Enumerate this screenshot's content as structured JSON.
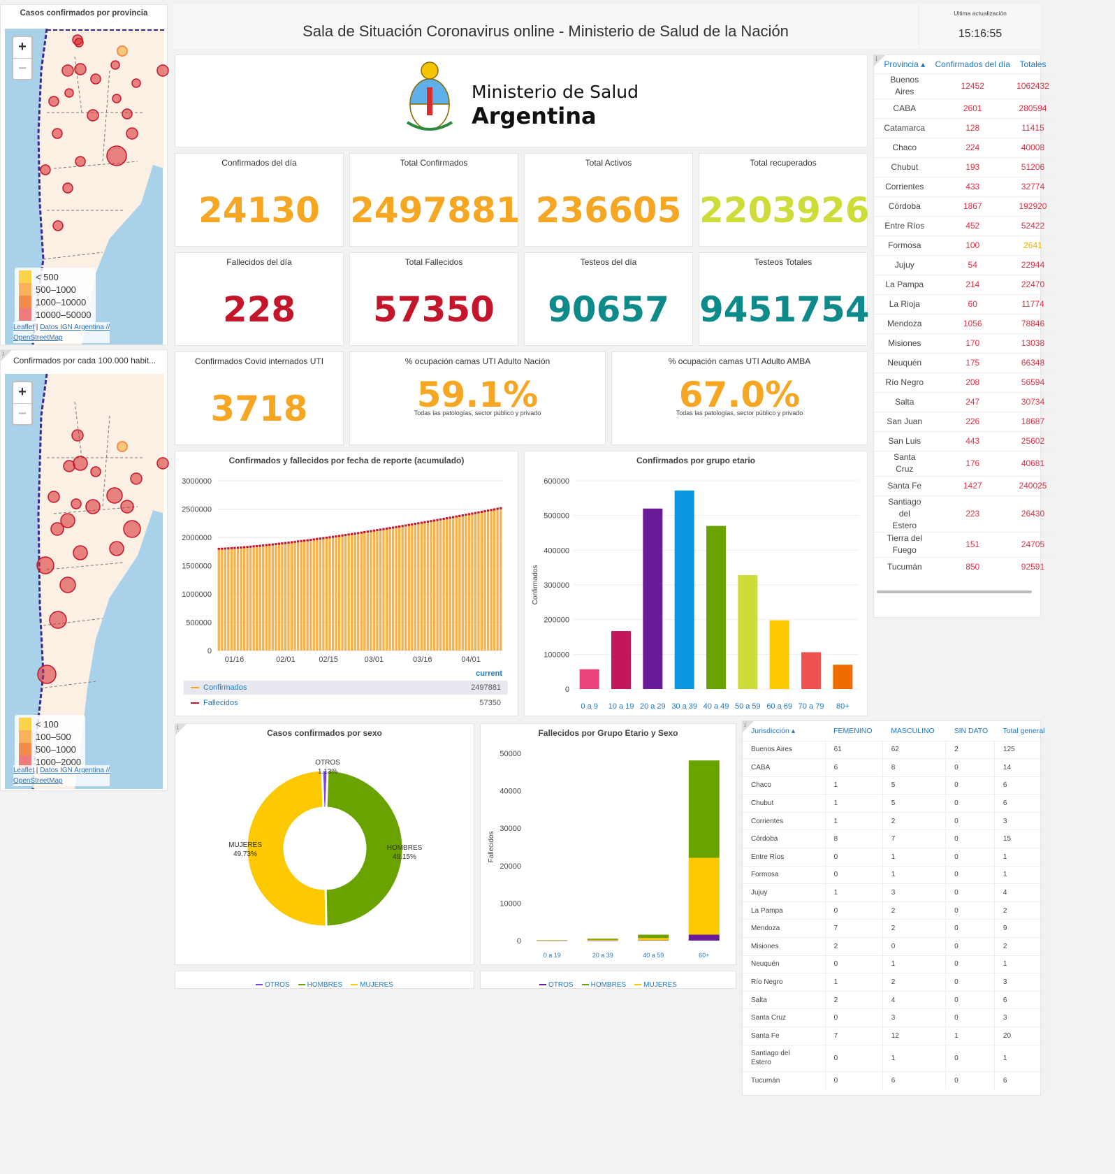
{
  "header": {
    "title": "Sala de Situación Coronavirus online - Ministerio de Salud de la Nación",
    "update_label": "Ultima actualización",
    "update_time": "15:16:55"
  },
  "logo": {
    "line1": "Ministerio de Salud",
    "line2": "Argentina"
  },
  "map1": {
    "title": "Casos confirmados por provincia",
    "zoom_in": "+",
    "zoom_out": "−",
    "legend": [
      {
        "label": "< 500",
        "color": "#fbd34a"
      },
      {
        "label": "500–1000",
        "color": "#f9b25a"
      },
      {
        "label": "1000–10000",
        "color": "#f38c4b"
      },
      {
        "label": "10000–50000",
        "color": "#ef7a7a"
      }
    ],
    "attr_leaflet": "Leaflet",
    "attr_sep": " | ",
    "attr_ign": "Datos IGN Argentina //",
    "attr_osm": "OpenStreetMap"
  },
  "map2": {
    "title": "Confirmados por cada 100.000 habit...",
    "zoom_in": "+",
    "zoom_out": "−",
    "legend": [
      {
        "label": "< 100",
        "color": "#fbd34a"
      },
      {
        "label": "100–500",
        "color": "#f9b25a"
      },
      {
        "label": "500–1000",
        "color": "#f38c4b"
      },
      {
        "label": "1000–2000",
        "color": "#ef7a7a"
      }
    ],
    "attr_leaflet": "Leaflet",
    "attr_sep": " | ",
    "attr_ign": "Datos IGN Argentina //",
    "attr_osm": "OpenStreetMap"
  },
  "stats": {
    "confirmados_dia": {
      "label": "Confirmados del día",
      "value": "24130",
      "color": "#f5a623"
    },
    "total_confirmados": {
      "label": "Total Confirmados",
      "value": "2497881",
      "color": "#f5a623"
    },
    "total_activos": {
      "label": "Total Activos",
      "value": "236605",
      "color": "#f5a623"
    },
    "total_recuperados": {
      "label": "Total recuperados",
      "value": "2203926",
      "color": "#cddc39"
    },
    "fallecidos_dia": {
      "label": "Fallecidos del día",
      "value": "228",
      "color": "#c4162a"
    },
    "total_fallecidos": {
      "label": "Total Fallecidos",
      "value": "57350",
      "color": "#c4162a"
    },
    "testeos_dia": {
      "label": "Testeos del día",
      "value": "90657",
      "color": "#0e8a8a"
    },
    "testeos_totales": {
      "label": "Testeos Totales",
      "value": "9451754",
      "color": "#0e8a8a"
    },
    "internados_uti": {
      "label": "Confirmados Covid internados UTI",
      "value": "3718",
      "color": "#f5a623"
    },
    "ocup_nacion": {
      "label": "% ocupación camas UTI Adulto Nación",
      "value": "59.1%",
      "sub": "Todas las patologías, sector público y privado",
      "color": "#f5a623"
    },
    "ocup_amba": {
      "label": "% ocupación camas UTI Adulto AMBA",
      "value": "67.0%",
      "sub": "Todas las patologías, sector público y privado",
      "color": "#f5a623"
    }
  },
  "province_table": {
    "headers": [
      "Provincia ▴",
      "Confirmados del día",
      "Totales"
    ],
    "rows": [
      [
        "Buenos Aires",
        "12452",
        "1062432"
      ],
      [
        "CABA",
        "2601",
        "280594"
      ],
      [
        "Catamarca",
        "128",
        "11415"
      ],
      [
        "Chaco",
        "224",
        "40008"
      ],
      [
        "Chubut",
        "193",
        "51206"
      ],
      [
        "Corrientes",
        "433",
        "32774"
      ],
      [
        "Córdoba",
        "1867",
        "192920"
      ],
      [
        "Entre Ríos",
        "452",
        "52422"
      ],
      [
        "Formosa",
        "100",
        "2641"
      ],
      [
        "Jujuy",
        "54",
        "22944"
      ],
      [
        "La Pampa",
        "214",
        "22470"
      ],
      [
        "La Rioja",
        "60",
        "11774"
      ],
      [
        "Mendoza",
        "1056",
        "78846"
      ],
      [
        "Misiones",
        "170",
        "13038"
      ],
      [
        "Neuquén",
        "175",
        "66348"
      ],
      [
        "Río Negro",
        "208",
        "56594"
      ],
      [
        "Salta",
        "247",
        "30734"
      ],
      [
        "San Juan",
        "226",
        "18687"
      ],
      [
        "San Luis",
        "443",
        "25602"
      ],
      [
        "Santa Cruz",
        "176",
        "40681"
      ],
      [
        "Santa Fe",
        "1427",
        "240025"
      ],
      [
        "Santiago del Estero",
        "223",
        "26430"
      ],
      [
        "Tierra del Fuego",
        "151",
        "24705"
      ],
      [
        "Tucumán",
        "850",
        "92591"
      ]
    ]
  },
  "chart_data": [
    {
      "type": "bar",
      "title": "Confirmados y fallecidos por fecha de reporte (acumulado)",
      "x_ticks": [
        "01/16",
        "02/01",
        "02/15",
        "03/01",
        "03/16",
        "04/01"
      ],
      "ylim": [
        0,
        3000000
      ],
      "y_ticks": [
        "3000000",
        "2500000",
        "2000000",
        "1500000",
        "1000000",
        "500000",
        "0"
      ],
      "series": [
        {
          "name": "Confirmados",
          "start": 1780000,
          "end": 2497881,
          "color": "#f5a623"
        },
        {
          "name": "Fallecidos",
          "start": 44000,
          "end": 57350,
          "color": "#c4162a"
        }
      ],
      "legend_header": "current",
      "legend_values": [
        "2497881",
        "57350"
      ]
    },
    {
      "type": "bar",
      "title": "Confirmados por grupo etario",
      "ylabel": "Confirmados",
      "ylim": [
        0,
        600000
      ],
      "y_ticks": [
        "600000",
        "500000",
        "400000",
        "300000",
        "200000",
        "100000",
        "0"
      ],
      "categories": [
        "0 a 9",
        "10 a 19",
        "20 a 29",
        "30 a 39",
        "40 a 49",
        "50 a 59",
        "60 a 69",
        "70 a 79",
        "80+"
      ],
      "values": [
        57000,
        167000,
        520000,
        572000,
        470000,
        328000,
        198000,
        106000,
        70000
      ],
      "colors": [
        "#e8437a",
        "#c2185b",
        "#6a1b9a",
        "#0a97e0",
        "#6aa300",
        "#cddc39",
        "#fcc800",
        "#ef5350",
        "#ef6c00"
      ]
    },
    {
      "type": "pie",
      "title": "Casos confirmados por sexo",
      "slices": [
        {
          "name": "OTROS",
          "pct": "1.13%",
          "value": 1.13,
          "color": "#7b3ff2"
        },
        {
          "name": "HOMBRES",
          "pct": "49.15%",
          "value": 49.15,
          "color": "#6aa300"
        },
        {
          "name": "MUJERES",
          "pct": "49.73%",
          "value": 49.73,
          "color": "#fcc800"
        }
      ],
      "legend": [
        "OTROS",
        "HOMBRES",
        "MUJERES"
      ]
    },
    {
      "type": "bar",
      "title": "Fallecidos por Grupo Etario y Sexo",
      "ylabel": "Fallecidos",
      "ylim": [
        0,
        50000
      ],
      "y_ticks": [
        "50000",
        "40000",
        "30000",
        "20000",
        "10000",
        "0"
      ],
      "categories": [
        "0 a 19",
        "20 a 39",
        "40 a 59",
        "60+"
      ],
      "series": [
        {
          "name": "OTROS",
          "color": "#6a1b9a",
          "values": [
            0,
            10,
            80,
            1600
          ]
        },
        {
          "name": "HOMBRES",
          "color": "#6aa300",
          "values": [
            60,
            300,
            900,
            26000
          ]
        },
        {
          "name": "MUJERES",
          "color": "#fcc800",
          "values": [
            50,
            200,
            600,
            20500
          ]
        }
      ],
      "stacked": true,
      "legend": [
        "OTROS",
        "HOMBRES",
        "MUJERES"
      ]
    }
  ],
  "jurisdiccion_table": {
    "headers": [
      "Jurisdicción ▴",
      "FEMENINO",
      "MASCULINO",
      "SIN DATO",
      "Total general"
    ],
    "rows": [
      [
        "Buenos Aires",
        "61",
        "62",
        "2",
        "125"
      ],
      [
        "CABA",
        "6",
        "8",
        "0",
        "14"
      ],
      [
        "Chaco",
        "1",
        "5",
        "0",
        "6"
      ],
      [
        "Chubut",
        "1",
        "5",
        "0",
        "6"
      ],
      [
        "Corrientes",
        "1",
        "2",
        "0",
        "3"
      ],
      [
        "Córdoba",
        "8",
        "7",
        "0",
        "15"
      ],
      [
        "Entre Ríos",
        "0",
        "1",
        "0",
        "1"
      ],
      [
        "Formosa",
        "0",
        "1",
        "0",
        "1"
      ],
      [
        "Jujuy",
        "1",
        "3",
        "0",
        "4"
      ],
      [
        "La Pampa",
        "0",
        "2",
        "0",
        "2"
      ],
      [
        "Mendoza",
        "7",
        "2",
        "0",
        "9"
      ],
      [
        "Misiones",
        "2",
        "0",
        "0",
        "2"
      ],
      [
        "Neuquén",
        "0",
        "1",
        "0",
        "1"
      ],
      [
        "Río Negro",
        "1",
        "2",
        "0",
        "3"
      ],
      [
        "Salta",
        "2",
        "4",
        "0",
        "6"
      ],
      [
        "Santa Cruz",
        "0",
        "3",
        "0",
        "3"
      ],
      [
        "Santa Fe",
        "7",
        "12",
        "1",
        "20"
      ],
      [
        "Santiago del Estero",
        "0",
        "1",
        "0",
        "1"
      ],
      [
        "Tucumán",
        "0",
        "6",
        "0",
        "6"
      ]
    ]
  }
}
